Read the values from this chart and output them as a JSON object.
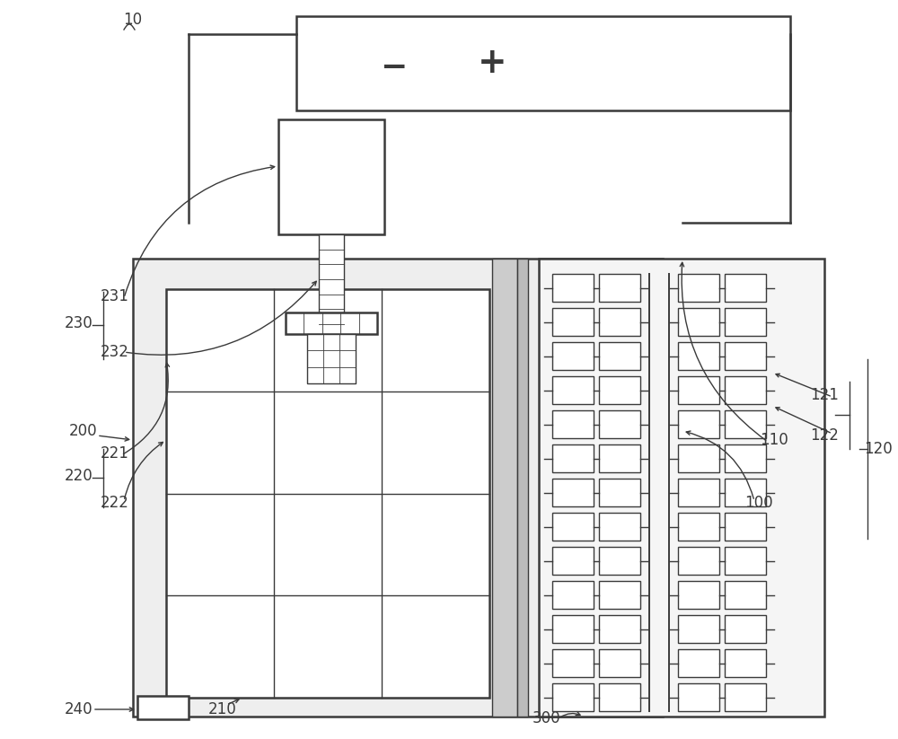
{
  "bg_color": "#ffffff",
  "lc": "#3a3a3a",
  "fig_width": 10.0,
  "fig_height": 8.23,
  "dpi": 100
}
